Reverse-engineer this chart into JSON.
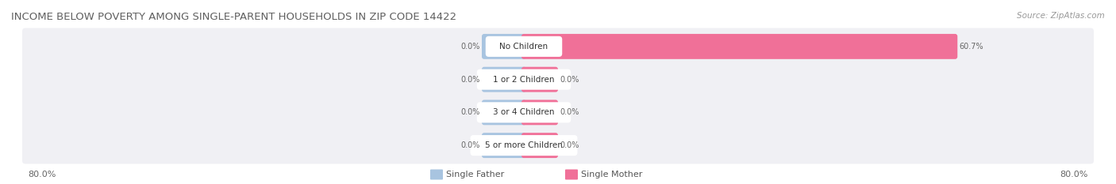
{
  "title": "INCOME BELOW POVERTY AMONG SINGLE-PARENT HOUSEHOLDS IN ZIP CODE 14422",
  "source": "Source: ZipAtlas.com",
  "categories": [
    "No Children",
    "1 or 2 Children",
    "3 or 4 Children",
    "5 or more Children"
  ],
  "single_father": [
    0.0,
    0.0,
    0.0,
    0.0
  ],
  "single_mother": [
    60.7,
    0.0,
    0.0,
    0.0
  ],
  "father_color": "#a8c4e0",
  "mother_color": "#f07098",
  "background_row_color": "#f0f0f4",
  "axis_left_label": "80.0%",
  "axis_right_label": "80.0%",
  "x_max": 80.0,
  "title_fontsize": 9.5,
  "source_fontsize": 7.5,
  "label_fontsize": 7.5,
  "tick_fontsize": 8,
  "bar_label_fontsize": 7,
  "cat_label_fontsize": 7.5
}
